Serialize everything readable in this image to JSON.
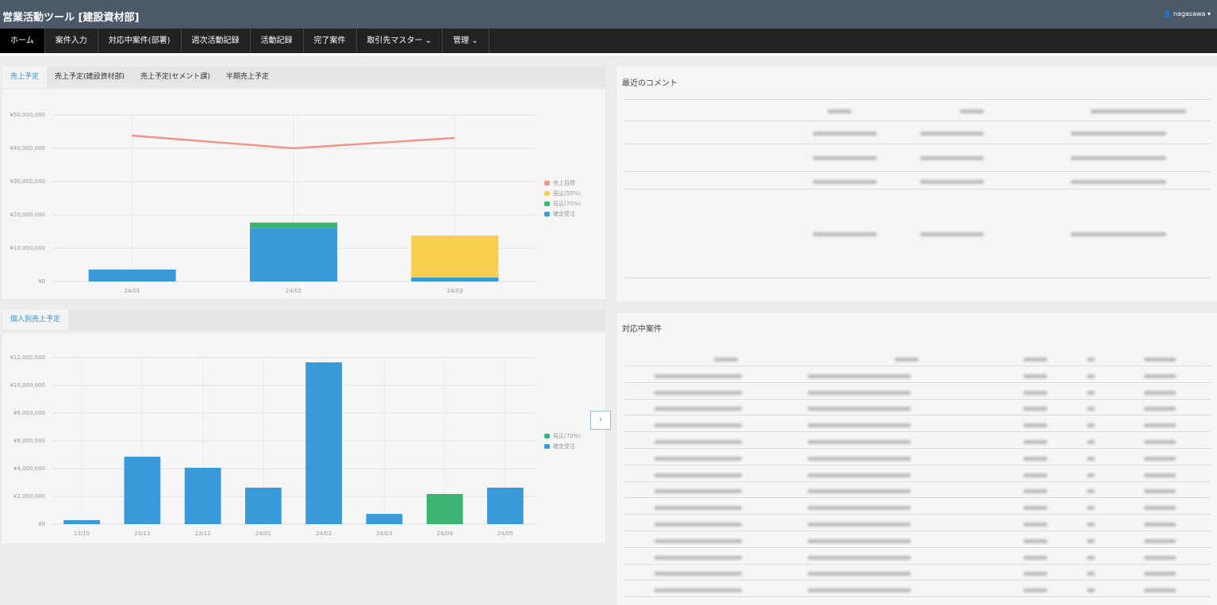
{
  "header": {
    "title": "営業活動ツール [建設資材部]",
    "user": "nagasawa"
  },
  "nav": [
    "ホーム",
    "案件入力",
    "対応中案件(部署)",
    "週次活動記録",
    "活動記録",
    "完了案件",
    "取引先マスター",
    "管理"
  ],
  "tabs_top": [
    "売上予定",
    "売上予定(建設資材部)",
    "売上予定(セメント課)",
    "半期売上予定"
  ],
  "tabs_bottom": [
    "個人別売上予定"
  ],
  "panels": {
    "comments": "最近のコメント",
    "cases": "対応中案件"
  },
  "chart_data": [
    {
      "type": "bar",
      "stacked": true,
      "categories": [
        "24/01",
        "24/02",
        "24/03"
      ],
      "series": [
        {
          "name": "確定受注",
          "color": "#3a9ad9",
          "values": [
            3600000.0,
            16000000.0,
            1200000.0
          ]
        },
        {
          "name": "見込(70%)",
          "color": "#3cb371",
          "values": [
            0,
            1700000.0,
            0
          ]
        },
        {
          "name": "見込(50%)",
          "color": "#f8cf4f",
          "values": [
            0,
            0,
            12600000.0
          ]
        },
        {
          "name": "売上目標",
          "color": "#f1948a",
          "type": "line",
          "values": [
            43800000.0,
            40000000.0,
            43100000.0
          ]
        }
      ],
      "ylim": [
        0,
        50000000
      ],
      "yticks": [
        {
          "value": 0,
          "label": "¥0"
        },
        {
          "value": 10000000,
          "label": "¥10,000,000"
        },
        {
          "value": 20000000,
          "label": "¥20,000,000"
        },
        {
          "value": 30000000,
          "label": "¥30,000,000"
        },
        {
          "value": 40000000,
          "label": "¥40,000,000"
        },
        {
          "value": 50000000,
          "label": "¥50,000,000"
        }
      ],
      "grid": true
    },
    {
      "type": "bar",
      "stacked": true,
      "categories": [
        "23/10",
        "23/11",
        "23/12",
        "24/01",
        "24/02",
        "24/03",
        "24/04",
        "24/05"
      ],
      "series": [
        {
          "name": "確定受注",
          "color": "#3a9ad9",
          "values": [
            290000.0,
            4860000.0,
            4060000.0,
            2630000.0,
            11660000.0,
            740000.0,
            0,
            2630000.0
          ]
        },
        {
          "name": "見込(70%)",
          "color": "#3cb371",
          "values": [
            0,
            0,
            0,
            0,
            0,
            0,
            2170000.0,
            0
          ]
        }
      ],
      "ylim": [
        0,
        12000000
      ],
      "yticks": [
        {
          "value": 0,
          "label": "¥0"
        },
        {
          "value": 2000000,
          "label": "¥2,000,000"
        },
        {
          "value": 4000000,
          "label": "¥4,000,000"
        },
        {
          "value": 6000000,
          "label": "¥6,000,000"
        },
        {
          "value": 8000000,
          "label": "¥8,000,000"
        },
        {
          "value": 10000000,
          "label": "¥10,000,000"
        },
        {
          "value": 12000000,
          "label": "¥12,000,000"
        }
      ],
      "grid": true
    }
  ]
}
